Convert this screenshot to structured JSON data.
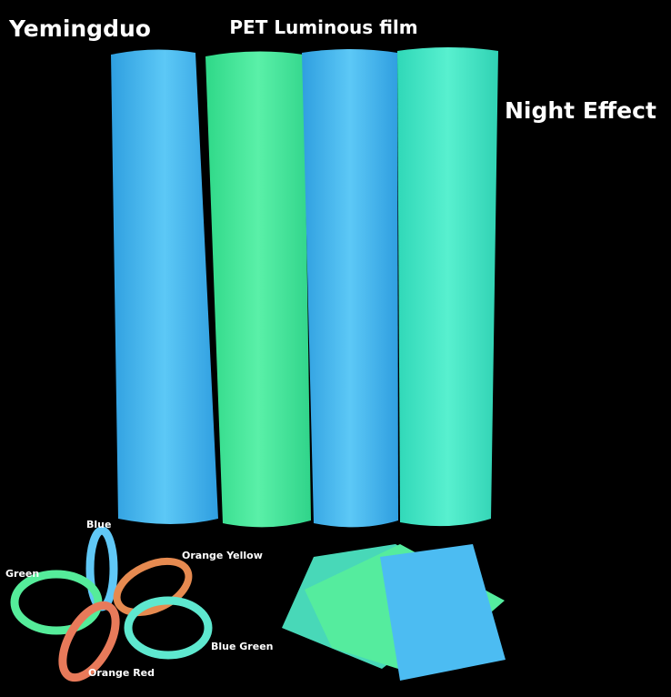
{
  "brand": "Yemingduo",
  "title": "PET Luminous film",
  "subtitle": "Night Effect",
  "tape_labels": {
    "blue": "Blue",
    "orange_yellow": "Orange Yellow",
    "green": "Green",
    "blue_green": "Blue Green",
    "orange_red": "Orange Red"
  }
}
